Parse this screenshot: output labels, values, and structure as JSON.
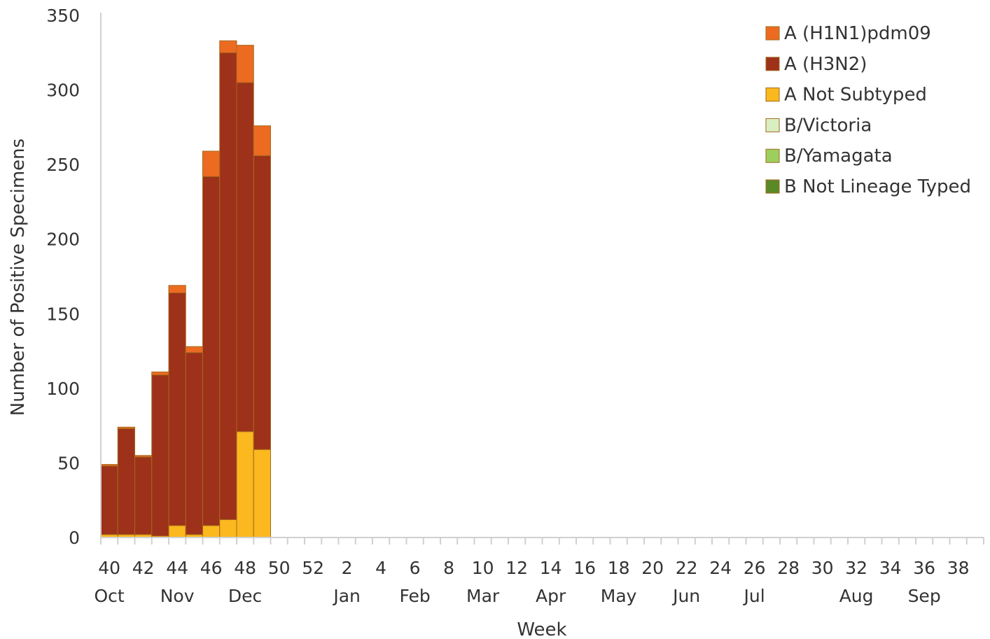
{
  "chart_data": {
    "type": "bar",
    "stacked": true,
    "xlabel": "Week",
    "ylabel": "Number of Positive Specimens",
    "ylim": [
      0,
      350
    ],
    "yticks": [
      0,
      50,
      100,
      150,
      200,
      250,
      300,
      350
    ],
    "grid": false,
    "legend_position": "top-right",
    "weeks": [
      40,
      41,
      42,
      43,
      44,
      45,
      46,
      47,
      48,
      49,
      50,
      51,
      52,
      1,
      2,
      3,
      4,
      5,
      6,
      7,
      8,
      9,
      10,
      11,
      12,
      13,
      14,
      15,
      16,
      17,
      18,
      19,
      20,
      21,
      22,
      23,
      24,
      25,
      26,
      27,
      28,
      29,
      30,
      31,
      32,
      33,
      34,
      35,
      36,
      37,
      38,
      39
    ],
    "week_tick_labels": [
      "40",
      "42",
      "44",
      "46",
      "48",
      "50",
      "52",
      "2",
      "4",
      "6",
      "8",
      "10",
      "12",
      "14",
      "16",
      "18",
      "20",
      "22",
      "24",
      "26",
      "28",
      "30",
      "32",
      "34",
      "36",
      "38"
    ],
    "month_labels": [
      {
        "label": "Oct",
        "week": 40
      },
      {
        "label": "Nov",
        "week": 44
      },
      {
        "label": "Dec",
        "week": 48
      },
      {
        "label": "Jan",
        "week": 2
      },
      {
        "label": "Feb",
        "week": 6
      },
      {
        "label": "Mar",
        "week": 10
      },
      {
        "label": "Apr",
        "week": 14
      },
      {
        "label": "May",
        "week": 18
      },
      {
        "label": "Jun",
        "week": 22
      },
      {
        "label": "Jul",
        "week": 26
      },
      {
        "label": "Aug",
        "week": 32
      },
      {
        "label": "Sep",
        "week": 36
      }
    ],
    "series": [
      {
        "name": "A Not Subtyped",
        "color": "#fbb81f",
        "values": [
          2,
          2,
          2,
          1,
          8,
          2,
          8,
          12,
          71,
          59
        ]
      },
      {
        "name": "A (H3N2)",
        "color": "#9e3119",
        "values": [
          46,
          71,
          52,
          108,
          156,
          122,
          234,
          313,
          234,
          197
        ]
      },
      {
        "name": "A (H1N1)pdm09",
        "color": "#ec6b21",
        "values": [
          1,
          1,
          1,
          2,
          5,
          4,
          17,
          8,
          25,
          20
        ]
      },
      {
        "name": "B/Victoria",
        "color": "#d9efc2",
        "values": [
          0,
          0,
          0,
          0,
          0,
          0,
          0,
          0,
          0,
          0
        ]
      },
      {
        "name": "B/Yamagata",
        "color": "#9ccf5e",
        "values": [
          0,
          0,
          0,
          0,
          0,
          0,
          0,
          0,
          0,
          0
        ]
      },
      {
        "name": "B Not Lineage Typed",
        "color": "#5a8a25",
        "values": [
          0,
          0,
          0,
          0,
          0,
          0,
          0,
          0,
          0,
          0
        ]
      }
    ],
    "legend": [
      {
        "label": "A (H1N1)pdm09",
        "color": "#ec6b21"
      },
      {
        "label": "A (H3N2)",
        "color": "#9e3119"
      },
      {
        "label": "A Not Subtyped",
        "color": "#fbb81f"
      },
      {
        "label": "B/Victoria",
        "color": "#d9efc2"
      },
      {
        "label": "B/Yamagata",
        "color": "#9ccf5e"
      },
      {
        "label": "B Not Lineage Typed",
        "color": "#5a8a25"
      }
    ],
    "axis_color": "#d0d0d0",
    "bar_outline_color": "#a36a1c"
  }
}
